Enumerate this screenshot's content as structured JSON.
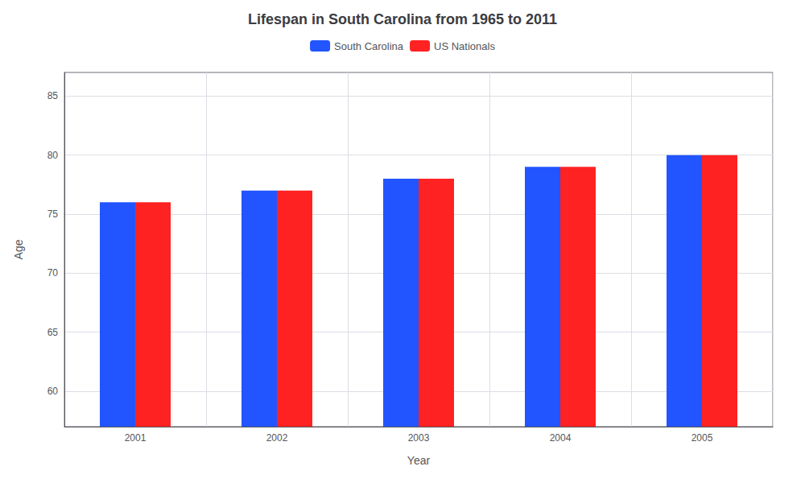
{
  "chart_data": {
    "type": "bar",
    "title": "Lifespan in South Carolina from 1965 to 2011",
    "xlabel": "Year",
    "ylabel": "Age",
    "categories": [
      "2001",
      "2002",
      "2003",
      "2004",
      "2005"
    ],
    "series": [
      {
        "name": "South Carolina",
        "color": "#2255ff",
        "values": [
          76,
          77,
          78,
          79,
          80
        ]
      },
      {
        "name": "US Nationals",
        "color": "#ff2222",
        "values": [
          76,
          77,
          78,
          79,
          80
        ]
      }
    ],
    "ylim": [
      57,
      87
    ],
    "yticks": [
      60,
      65,
      70,
      75,
      80,
      85
    ],
    "grid": true,
    "legend": "top"
  }
}
